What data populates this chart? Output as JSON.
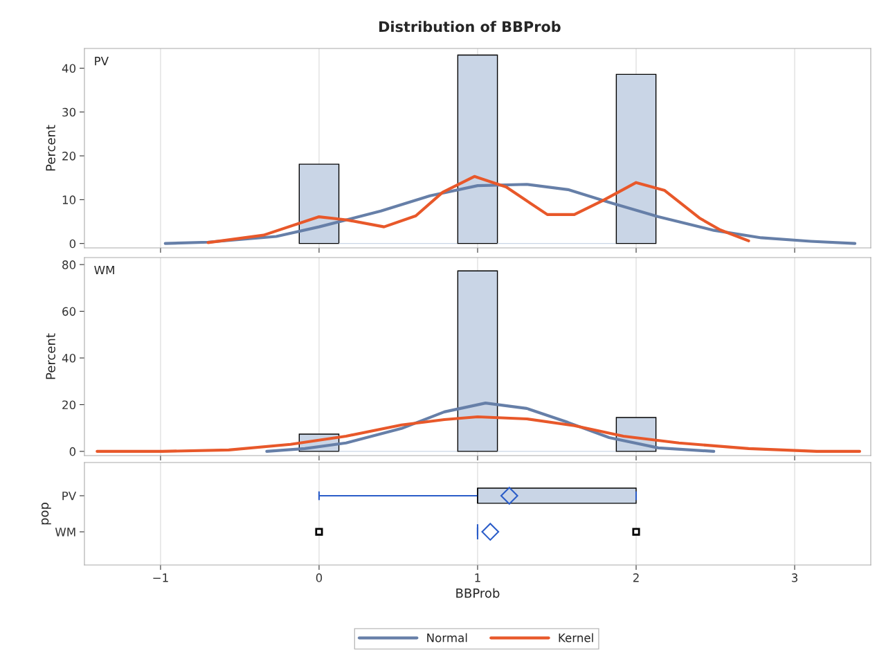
{
  "chart_data": [
    {
      "type": "histogram",
      "title": "Distribution of BBProb",
      "ylabel": "Percent",
      "annotations": [
        "PV"
      ],
      "bins": [
        -0.125,
        0.125,
        0.875,
        1.125,
        1.875,
        2.125
      ],
      "values": [
        18.1,
        0,
        43.0,
        0,
        38.6
      ],
      "color": "#c9d5e6",
      "xlim": [
        -1.48,
        3.48
      ],
      "xticks": [
        -1,
        0,
        1,
        2,
        3
      ],
      "ylim": [
        -1,
        44.5
      ],
      "yticks": [
        0,
        10,
        20,
        30,
        40
      ],
      "tick_labels": "y",
      "grid": "x",
      "legend": "bottom",
      "series": [
        {
          "name": "Normal",
          "type": "line",
          "color": "#667fa8",
          "x": [
            -0.97,
            -0.7,
            -0.27,
            0,
            0.39,
            0.7,
            1,
            1.31,
            1.57,
            1.83,
            2.14,
            2.49,
            2.79,
            3.1,
            3.38
          ],
          "values": [
            0,
            0.3,
            1.6,
            3.8,
            7.4,
            10.9,
            13.2,
            13.5,
            12.3,
            9.4,
            6.1,
            3.0,
            1.3,
            0.5,
            0
          ]
        },
        {
          "name": "Kernel",
          "type": "line",
          "color": "#e8582a",
          "x": [
            -0.7,
            -0.35,
            0,
            0.17,
            0.41,
            0.61,
            0.78,
            0.98,
            1.18,
            1.44,
            1.61,
            1.79,
            2.0,
            2.18,
            2.4,
            2.53,
            2.71
          ],
          "values": [
            0.2,
            1.9,
            6.1,
            5.4,
            3.8,
            6.3,
            11.7,
            15.3,
            12.9,
            6.6,
            6.6,
            9.8,
            13.9,
            12.1,
            5.8,
            3.1,
            0.6
          ]
        }
      ]
    },
    {
      "type": "histogram",
      "ylabel": "Percent",
      "annotations": [
        "WM"
      ],
      "bins": [
        -0.125,
        0.125,
        0.875,
        1.125,
        1.875,
        2.125
      ],
      "values": [
        7.4,
        0,
        77.3,
        0,
        14.5
      ],
      "color": "#c9d5e6",
      "xlim": [
        -1.48,
        3.48
      ],
      "xticks": [
        -1,
        0,
        1,
        2,
        3
      ],
      "ylim": [
        -1.8,
        83
      ],
      "yticks": [
        0,
        20,
        40,
        60,
        80
      ],
      "tick_labels": "y",
      "grid": "x",
      "series": [
        {
          "name": "Normal",
          "type": "line",
          "color": "#667fa8",
          "x": [
            -0.33,
            -0.09,
            0.17,
            0.52,
            0.79,
            1.05,
            1.31,
            1.57,
            1.83,
            2.14,
            2.49
          ],
          "values": [
            0,
            1.2,
            3.6,
            9.8,
            16.9,
            20.7,
            18.4,
            12.4,
            5.9,
            1.5,
            0
          ]
        },
        {
          "name": "Kernel",
          "type": "line",
          "color": "#e8582a",
          "x": [
            -1.4,
            -0.99,
            -0.57,
            -0.18,
            0.17,
            0.52,
            0.79,
            1.0,
            1.31,
            1.61,
            1.92,
            2.27,
            2.71,
            3.14,
            3.41
          ],
          "values": [
            0,
            0,
            0.6,
            3.0,
            6.5,
            11.3,
            13.6,
            14.8,
            13.9,
            11.0,
            6.5,
            3.6,
            1.2,
            0,
            0
          ]
        }
      ]
    },
    {
      "type": "box",
      "orientation": "horizontal",
      "xlabel": "BBProb",
      "ylabel": "pop",
      "categories": [
        "PV",
        "WM"
      ],
      "color": "#c9d5e6",
      "xlim": [
        -1.48,
        3.48
      ],
      "xticks": [
        -1,
        0,
        1,
        2,
        3
      ],
      "grid": "x",
      "boxes": [
        {
          "low": 0,
          "q1": 1,
          "median": 1,
          "q3": 2,
          "high": 2,
          "mean": 1.2
        },
        {
          "low": 1,
          "q1": 1,
          "median": 1,
          "q3": 1,
          "high": 1,
          "mean": 1.08,
          "outliers": [
            0,
            2
          ]
        }
      ]
    }
  ]
}
